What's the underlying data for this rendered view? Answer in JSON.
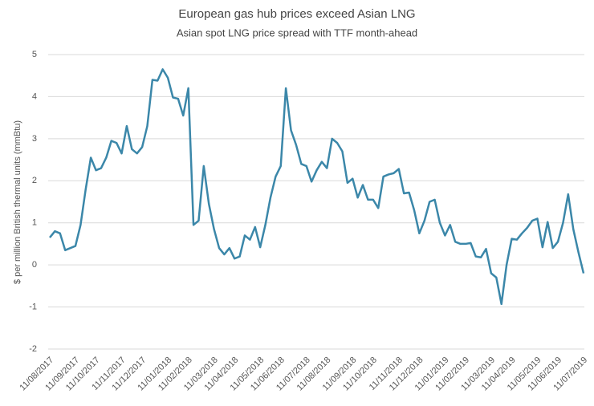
{
  "chart_data": {
    "type": "line",
    "title": "European gas hub prices exceed Asian LNG",
    "subtitle": "Asian spot LNG price spread with TTF month-ahead",
    "y_label": "$ per million British thermal units (mmBtu)",
    "categories": [
      "11/08/2017",
      null,
      null,
      null,
      null,
      "11/09/2017",
      null,
      null,
      null,
      "11/10/2017",
      null,
      null,
      null,
      null,
      "11/11/2017",
      null,
      null,
      null,
      "11/12/2017",
      null,
      null,
      null,
      null,
      "11/01/2018",
      null,
      null,
      null,
      "11/02/2018",
      null,
      null,
      null,
      null,
      "11/03/2018",
      null,
      null,
      null,
      "11/04/2018",
      null,
      null,
      null,
      null,
      "11/05/2018",
      null,
      null,
      null,
      "11/06/2018",
      null,
      null,
      null,
      null,
      "11/07/2018",
      null,
      null,
      null,
      "11/08/2018",
      null,
      null,
      null,
      null,
      "11/09/2018",
      null,
      null,
      null,
      "11/10/2018",
      null,
      null,
      null,
      null,
      "11/11/2018",
      null,
      null,
      null,
      "11/12/2018",
      null,
      null,
      null,
      null,
      "11/01/2019",
      null,
      null,
      null,
      "11/02/2019",
      null,
      null,
      null,
      null,
      "11/03/2019",
      null,
      null,
      null,
      "11/04/2019",
      null,
      null,
      null,
      null,
      "11/05/2019",
      null,
      null,
      null,
      "11/06/2019",
      null,
      null,
      null,
      null,
      "11/07/2019"
    ],
    "values": [
      0.65,
      0.8,
      0.75,
      0.35,
      0.4,
      0.45,
      0.95,
      1.8,
      2.55,
      2.25,
      2.3,
      2.55,
      2.95,
      2.9,
      2.65,
      3.3,
      2.75,
      2.65,
      2.8,
      3.3,
      4.4,
      4.38,
      4.65,
      4.45,
      3.98,
      3.95,
      3.55,
      4.2,
      0.95,
      1.05,
      2.35,
      1.45,
      0.85,
      0.4,
      0.25,
      0.4,
      0.15,
      0.2,
      0.7,
      0.6,
      0.9,
      0.42,
      0.95,
      1.6,
      2.1,
      2.35,
      4.2,
      3.2,
      2.85,
      2.4,
      2.35,
      1.98,
      2.25,
      2.45,
      2.3,
      3.0,
      2.9,
      2.7,
      1.95,
      2.05,
      1.6,
      1.9,
      1.55,
      1.55,
      1.35,
      2.1,
      2.15,
      2.18,
      2.28,
      1.7,
      1.72,
      1.3,
      0.75,
      1.05,
      1.5,
      1.55,
      1.0,
      0.7,
      0.95,
      0.55,
      0.5,
      0.5,
      0.52,
      0.2,
      0.18,
      0.38,
      -0.2,
      -0.3,
      -0.93,
      0.0,
      0.62,
      0.6,
      0.75,
      0.88,
      1.05,
      1.1,
      0.42,
      1.02,
      0.4,
      0.55,
      1.0,
      1.68,
      0.85,
      0.3,
      -0.2
    ],
    "color": "#3b87a9",
    "ylim": [
      -2,
      5
    ],
    "yticks": [
      -2,
      -1,
      0,
      1,
      2,
      3,
      4,
      5
    ],
    "grid": true
  }
}
